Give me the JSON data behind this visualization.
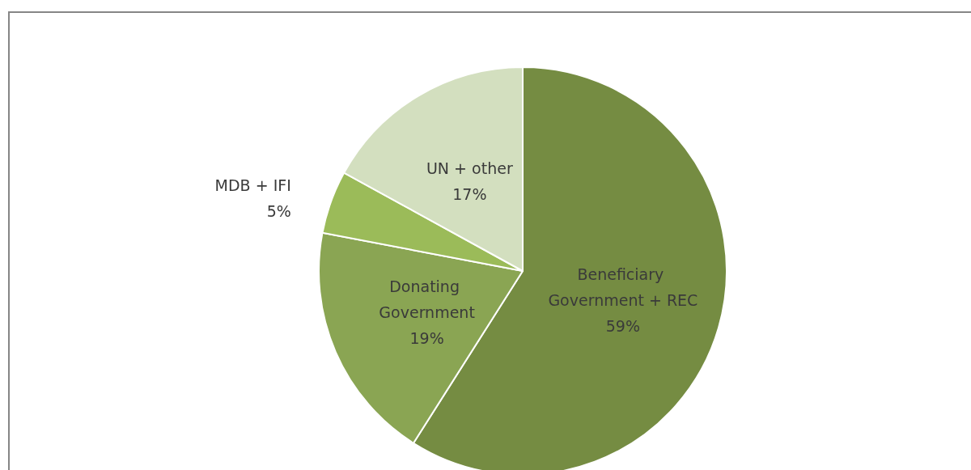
{
  "chart_data": {
    "type": "pie",
    "categories": [
      "Beneficiary Government + REC",
      "Donating Government",
      "MDB + IFI",
      "UN + other"
    ],
    "values": [
      59,
      19,
      5,
      17
    ],
    "colors": [
      "#758c42",
      "#8aa553",
      "#9bbb59",
      "#d3dfbf"
    ],
    "value_labels": [
      "59%",
      "19%",
      "5%",
      "17%"
    ],
    "legend": false
  }
}
